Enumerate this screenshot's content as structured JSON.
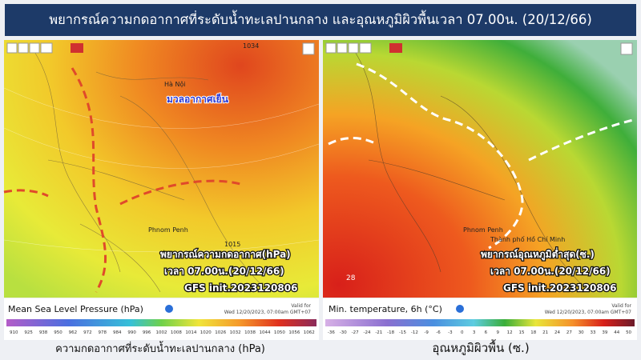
{
  "header": {
    "title": "พยากรณ์ความกดอากาศที่ระดับน้ำทะเลปานกลาง และอุณหภูมิผิวพื้นเวลา 07.00น. (20/12/66)"
  },
  "left_panel": {
    "isobar_labels": [
      "1034",
      "1015"
    ],
    "places": [
      "Hà Nội",
      "Phnom Penh"
    ],
    "cold_air_label": "มวลอากาศเย็น",
    "overlay": [
      "พยากรณ์ความกดอากาศ(hPa)",
      "เวลา 07.00น.(20/12/66)",
      "GFS init.2023120806"
    ],
    "legend": {
      "title": "Mean Sea Level Pressure (hPa)",
      "valid_for": "Valid for",
      "valid_time": "Wed 12/20/2023, 07:00am GMT+07",
      "ticks": [
        910,
        925,
        938,
        950,
        962,
        972,
        978,
        984,
        990,
        996,
        1002,
        1008,
        1014,
        1020,
        1026,
        1032,
        1038,
        1044,
        1050,
        1056,
        1062
      ]
    },
    "caption": "ความกดอากาศที่ระดับน้ำทะเลปานกลาง (hPa)"
  },
  "right_panel": {
    "map_value": "28",
    "places": [
      "Phnom Penh",
      "Thành phố Hồ Chí Minh"
    ],
    "overlay": [
      "พยากรณ์อุณหภูมิต่ำสุด(ซ.)",
      "เวลา 07.00น.(20/12/66)",
      "GFS init.2023120806"
    ],
    "legend": {
      "title": "Min. temperature, 6h (°C)",
      "valid_for": "Valid for",
      "valid_time": "Wed 12/20/2023, 07:00am GMT+07",
      "ticks": [
        -36,
        -30,
        -27,
        -24,
        -21,
        -18,
        -15,
        -12,
        -9,
        -6,
        -3,
        0,
        3,
        6,
        9,
        12,
        15,
        18,
        21,
        24,
        27,
        30,
        33,
        39,
        44,
        50
      ]
    },
    "caption": "อุณหภูมิผิวพื้น (ซ.)"
  }
}
